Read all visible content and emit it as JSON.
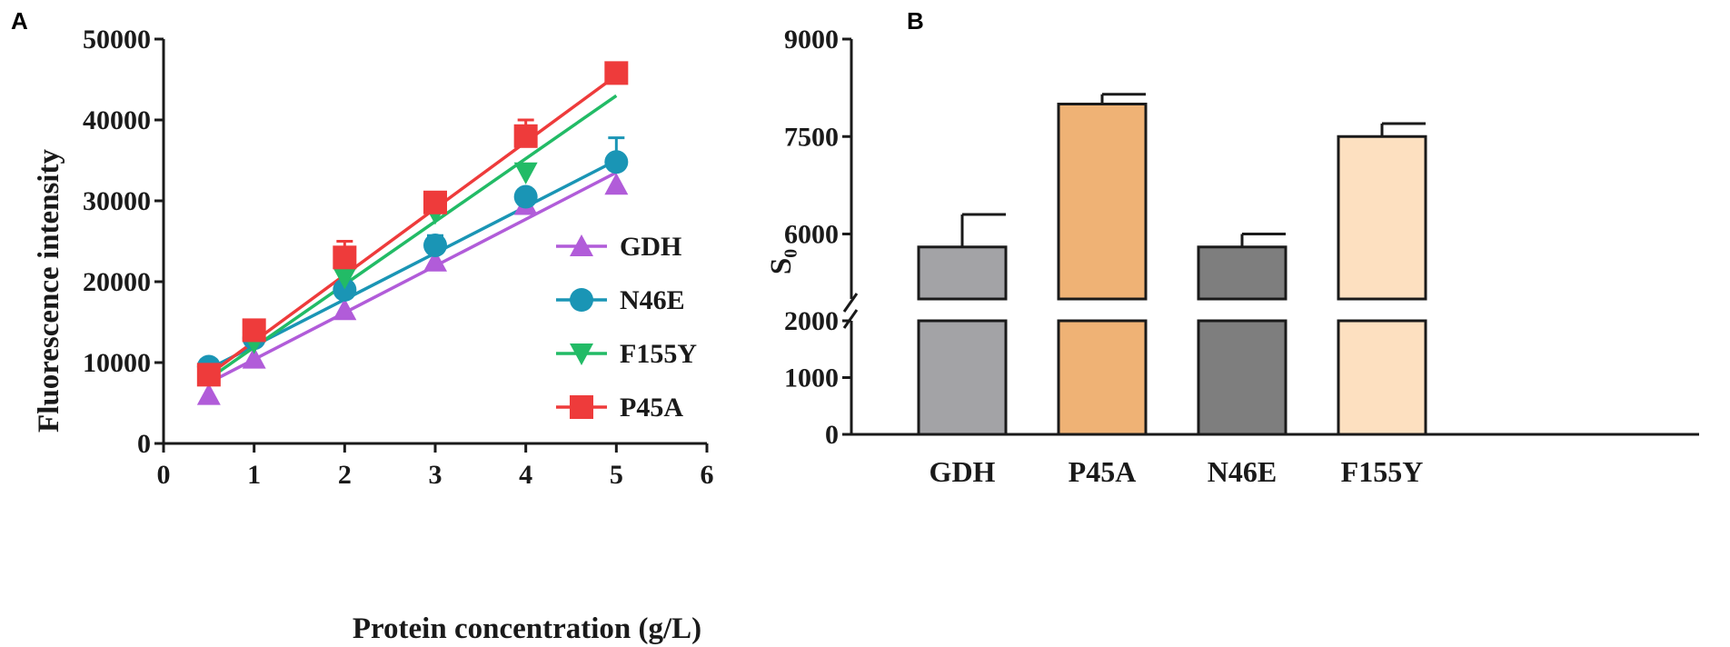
{
  "chart_data": [
    {
      "panel": "A",
      "type": "scatter",
      "title": "",
      "xlabel": "Protein concentration (g/L)",
      "ylabel": "Fluorescence intensity",
      "xlim": [
        0,
        6
      ],
      "ylim": [
        0,
        50000
      ],
      "xticks": [
        "0",
        "1",
        "2",
        "3",
        "4",
        "5",
        "6"
      ],
      "yticks": [
        "0",
        "10000",
        "20000",
        "30000",
        "40000",
        "50000"
      ],
      "legend_position": "right",
      "x": [
        0.5,
        1,
        2,
        3,
        4,
        5
      ],
      "series": [
        {
          "name": "GDH",
          "marker": "triangle-up",
          "color": "#b15cd9",
          "values": [
            6000,
            10500,
            16500,
            22500,
            29500,
            32000
          ],
          "errors": [
            0,
            0,
            0,
            0,
            0,
            0
          ],
          "fit": [
            0.5,
            7500,
            5,
            33500
          ]
        },
        {
          "name": "N46E",
          "marker": "circle",
          "color": "#1a95b5",
          "values": [
            9500,
            13000,
            19000,
            24500,
            30500,
            34800
          ],
          "errors": [
            0,
            0,
            0,
            1200,
            0,
            3000
          ],
          "fit": [
            0.5,
            9200,
            5,
            35000
          ]
        },
        {
          "name": "F155Y",
          "marker": "triangle-down",
          "color": "#22bb66",
          "values": [
            8500,
            12500,
            20500,
            28500,
            33500,
            46000
          ],
          "errors": [
            0,
            0,
            0,
            0,
            0,
            1000
          ],
          "fit": [
            0.5,
            8000,
            5,
            43000
          ]
        },
        {
          "name": "P45A",
          "marker": "square",
          "color": "#ee3b3b",
          "values": [
            8500,
            14000,
            23000,
            29800,
            38000,
            45800
          ],
          "errors": [
            0,
            0,
            2000,
            500,
            2000,
            1000
          ],
          "fit": [
            0.5,
            8500,
            5,
            45500
          ]
        }
      ]
    },
    {
      "panel": "B",
      "type": "bar",
      "title": "",
      "xlabel": "",
      "ylabel": "S₀",
      "categories": [
        "GDH",
        "P45A",
        "N46E",
        "F155Y"
      ],
      "values": [
        5800,
        8000,
        5800,
        7500
      ],
      "errors": [
        500,
        150,
        200,
        200
      ],
      "colors": [
        "#a3a3a6",
        "#efb275",
        "#7e7e7e",
        "#fde0c0"
      ],
      "axis_break": [
        2000,
        5000
      ],
      "yticks": [
        "0",
        "1000",
        "2000",
        "6000",
        "7500",
        "9000"
      ],
      "ylim_lower": [
        0,
        2000
      ],
      "ylim_upper": [
        5000,
        9000
      ]
    }
  ]
}
